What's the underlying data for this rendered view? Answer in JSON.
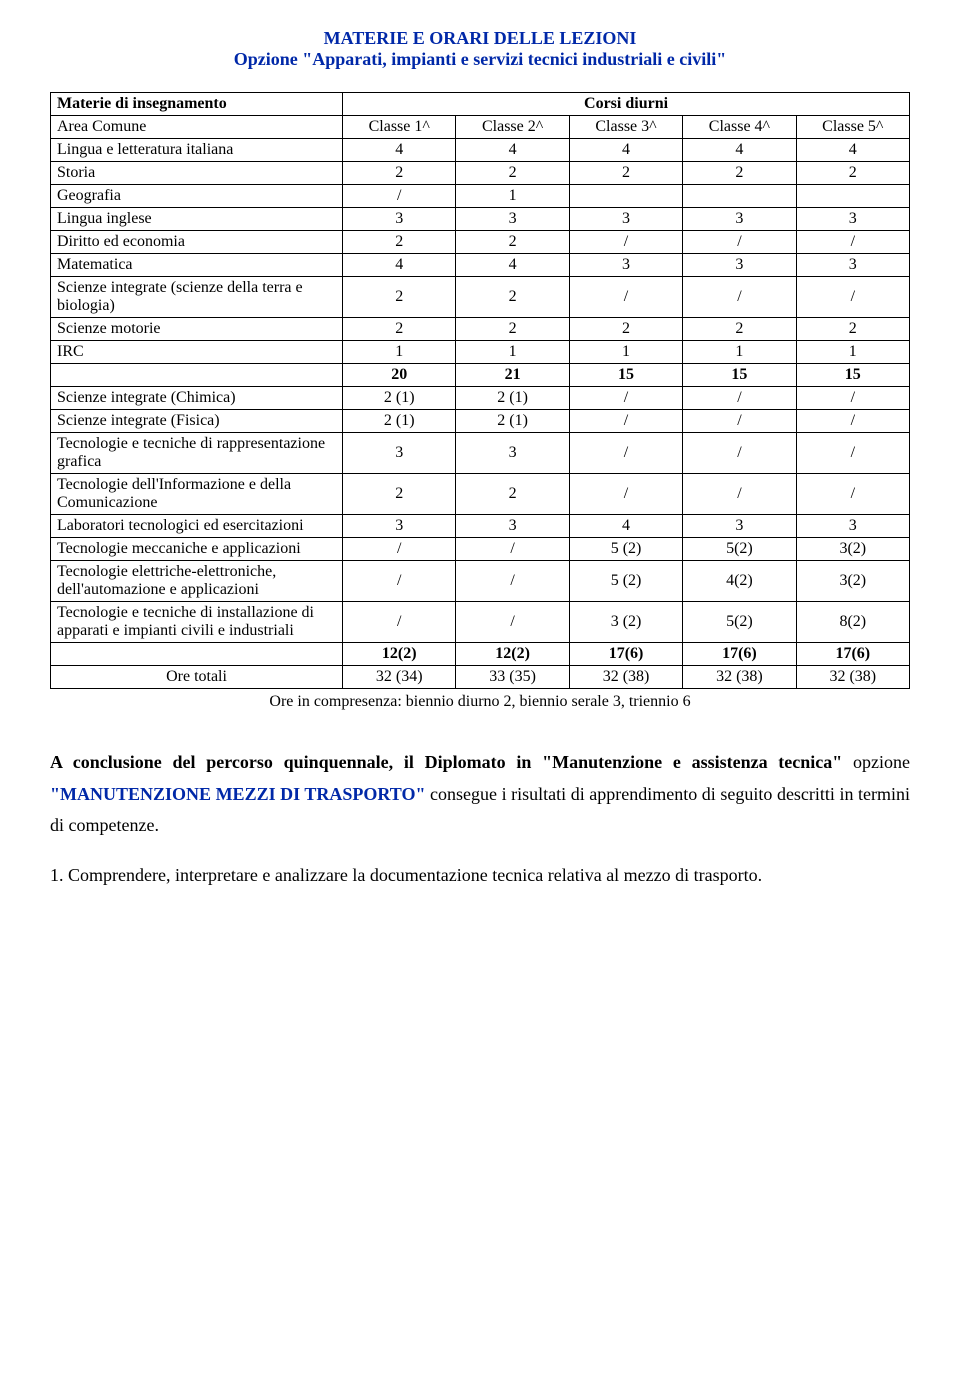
{
  "title": {
    "line1": "MATERIE E ORARI DELLE LEZIONI",
    "line2": "Opzione \"Apparati, impianti e servizi tecnici industriali e civili\""
  },
  "table": {
    "header": {
      "col1": "Materie di insegnamento",
      "span": "Corsi diurni",
      "sub": [
        "Area Comune",
        "Classe 1^",
        "Classe 2^",
        "Classe 3^",
        "Classe 4^",
        "Classe 5^"
      ]
    },
    "rows": [
      {
        "label": "Lingua e letteratura italiana",
        "c": [
          "4",
          "4",
          "4",
          "4",
          "4"
        ]
      },
      {
        "label": "Storia",
        "c": [
          "2",
          "2",
          "2",
          "2",
          "2"
        ]
      },
      {
        "label": "Geografia",
        "c": [
          "/",
          "1",
          "",
          "",
          ""
        ]
      },
      {
        "label": "Lingua inglese",
        "c": [
          "3",
          "3",
          "3",
          "3",
          "3"
        ]
      },
      {
        "label": "Diritto ed economia",
        "c": [
          "2",
          "2",
          "/",
          "/",
          "/"
        ]
      },
      {
        "label": "Matematica",
        "c": [
          "4",
          "4",
          "3",
          "3",
          "3"
        ]
      },
      {
        "label": "Scienze integrate (scienze della terra e biologia)",
        "c": [
          "2",
          "2",
          "/",
          "/",
          "/"
        ]
      },
      {
        "label": "Scienze motorie",
        "c": [
          "2",
          "2",
          "2",
          "2",
          "2"
        ]
      },
      {
        "label": "IRC",
        "c": [
          "1",
          "1",
          "1",
          "1",
          "1"
        ]
      },
      {
        "label": "",
        "c": [
          "20",
          "21",
          "15",
          "15",
          "15"
        ],
        "bold": true
      },
      {
        "label": "Scienze integrate (Chimica)",
        "c": [
          "2 (1)",
          "2 (1)",
          "/",
          "/",
          "/"
        ]
      },
      {
        "label": "Scienze integrate (Fisica)",
        "c": [
          "2 (1)",
          "2 (1)",
          "/",
          "/",
          "/"
        ]
      },
      {
        "label": "Tecnologie e tecniche di rappresentazione grafica",
        "c": [
          "3",
          "3",
          "/",
          "/",
          "/"
        ]
      },
      {
        "label": "Tecnologie dell'Informazione e della Comunicazione",
        "c": [
          "2",
          "2",
          "/",
          "/",
          "/"
        ]
      },
      {
        "label": "Laboratori tecnologici ed esercitazioni",
        "c": [
          "3",
          "3",
          "4",
          "3",
          "3"
        ]
      },
      {
        "label": "Tecnologie meccaniche e applicazioni",
        "c": [
          "/",
          "/",
          "5 (2)",
          "5(2)",
          "3(2)"
        ]
      },
      {
        "label": "Tecnologie elettriche-elettroniche, dell'automazione e applicazioni",
        "c": [
          "/",
          "/",
          "5 (2)",
          "4(2)",
          "3(2)"
        ]
      },
      {
        "label": "Tecnologie e tecniche di installazione di apparati e impianti civili e industriali",
        "c": [
          "/",
          "/",
          "3 (2)",
          "5(2)",
          "8(2)"
        ]
      },
      {
        "label": "",
        "c": [
          "12(2)",
          "12(2)",
          "17(6)",
          "17(6)",
          "17(6)"
        ],
        "bold": true
      },
      {
        "label": "Ore totali",
        "c": [
          "32 (34)",
          "33 (35)",
          "32 (38)",
          "32 (38)",
          "32 (38)"
        ]
      }
    ]
  },
  "footnote": "Ore in compresenza: biennio diurno 2, biennio serale 3, triennio 6",
  "paragraph": {
    "lead": "A conclusione del percorso quinquennale, il Diplomato in \"Manutenzione e assistenza tecnica\"",
    "option_prefix": "opzione",
    "option": "\"MANUTENZIONE MEZZI DI TRASPORTO\"",
    "tail1": "consegue i risultati di",
    "tail2": "apprendimento di seguito descritti in termini di competenze."
  },
  "numbered": "1. Comprendere, interpretare e analizzare la documentazione tecnica relativa al mezzo di trasporto."
}
